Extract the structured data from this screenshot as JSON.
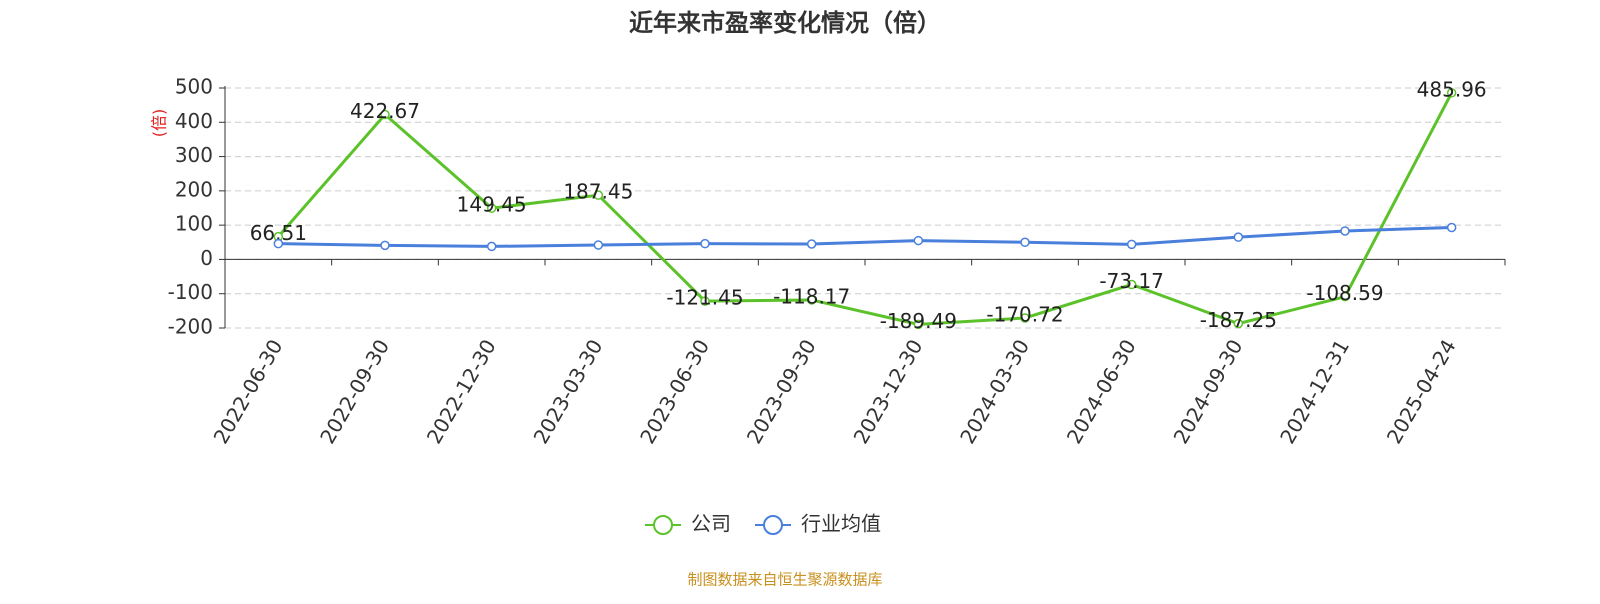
{
  "chart_data": {
    "type": "line",
    "title": "近年来市盈率变化情况（倍）",
    "y_label": "(倍)",
    "categories": [
      "2022-06-30",
      "2022-09-30",
      "2022-12-30",
      "2023-03-30",
      "2023-06-30",
      "2023-09-30",
      "2023-12-30",
      "2024-03-30",
      "2024-06-30",
      "2024-09-30",
      "2024-12-31",
      "2025-04-24"
    ],
    "series": [
      {
        "name": "公司",
        "color": "#5cc22a",
        "values": [
          66.51,
          422.67,
          149.45,
          187.45,
          -121.45,
          -118.17,
          -189.49,
          -170.72,
          -73.17,
          -187.25,
          -108.59,
          485.96
        ],
        "data_labels": true
      },
      {
        "name": "行业均值",
        "color": "#4a7fdc",
        "values": [
          46,
          41,
          38,
          42,
          46,
          45,
          55,
          50,
          44,
          65,
          83,
          93
        ],
        "data_labels": false
      }
    ],
    "ylim": [
      -200,
      500
    ],
    "yticks": [
      -200,
      -100,
      0,
      100,
      200,
      300,
      400,
      500
    ],
    "grid": true,
    "legend": "bottom",
    "source": "制图数据来自恒生聚源数据库"
  }
}
